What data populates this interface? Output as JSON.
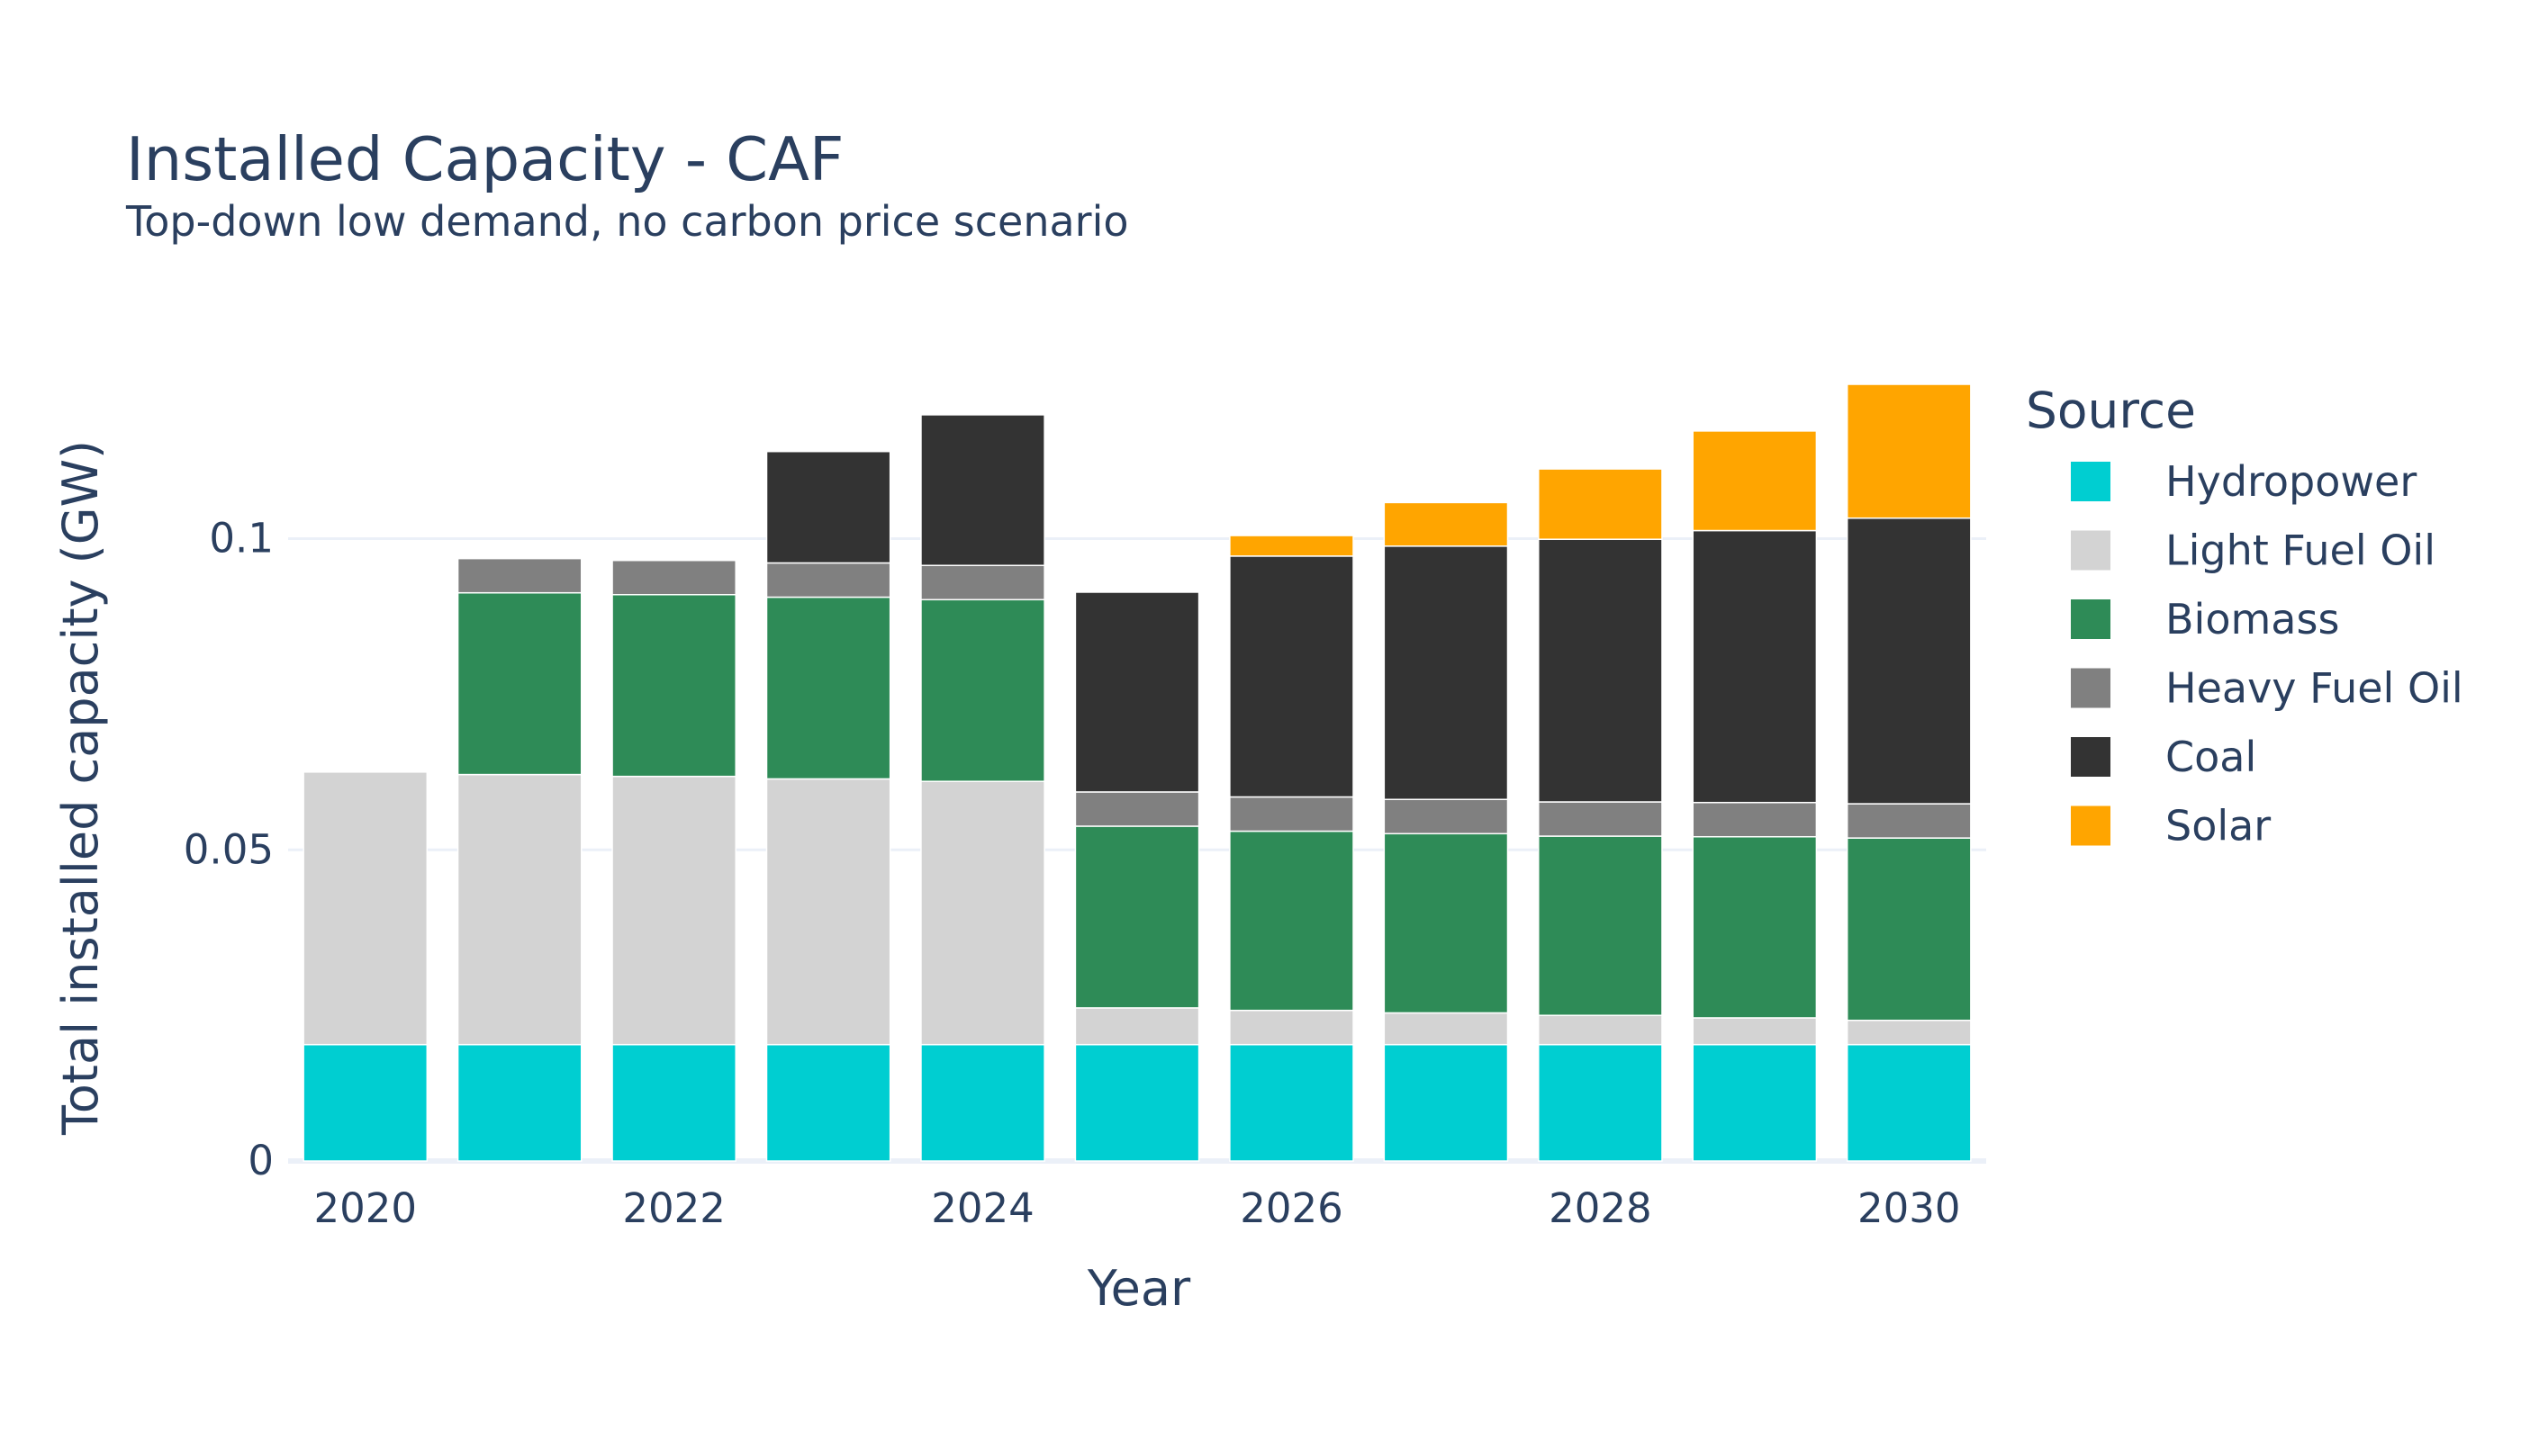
{
  "chart_data": {
    "type": "bar",
    "stacked": true,
    "title": "Installed Capacity - CAF",
    "subtitle": "Top-down low demand, no carbon price scenario",
    "xlabel": "Year",
    "ylabel": "Total installed capacity (GW)",
    "x": [
      2020,
      2021,
      2022,
      2023,
      2024,
      2025,
      2026,
      2027,
      2028,
      2029,
      2030
    ],
    "x_ticks": [
      2020,
      2022,
      2024,
      2026,
      2028,
      2030
    ],
    "x_tick_labels": [
      "2020",
      "2022",
      "2024",
      "2026",
      "2028",
      "2030"
    ],
    "y_ticks": [
      0,
      0.05,
      0.1
    ],
    "y_tick_labels": [
      "0",
      "0.05",
      "0.1"
    ],
    "ylim": [
      0,
      0.1316
    ],
    "grid": true,
    "legend_title": "Source",
    "legend_position": "right",
    "series": [
      {
        "name": "Hydropower",
        "color": "#00ced1",
        "values": [
          0.0187,
          0.0187,
          0.0187,
          0.0187,
          0.0187,
          0.0187,
          0.0187,
          0.0187,
          0.0187,
          0.0187,
          0.0187
        ]
      },
      {
        "name": "Light Fuel Oil",
        "color": "#d3d3d3",
        "values": [
          0.0438,
          0.0434,
          0.0431,
          0.0427,
          0.0423,
          0.0059,
          0.0055,
          0.0051,
          0.0047,
          0.0043,
          0.0039
        ]
      },
      {
        "name": "Biomass",
        "color": "#2e8b57",
        "values": [
          0,
          0.0292,
          0.0292,
          0.0292,
          0.0292,
          0.0292,
          0.0288,
          0.0288,
          0.0288,
          0.0291,
          0.0293
        ]
      },
      {
        "name": "Heavy Fuel Oil",
        "color": "#808080",
        "values": [
          0,
          0.0055,
          0.0055,
          0.0055,
          0.0055,
          0.0055,
          0.0055,
          0.0055,
          0.0055,
          0.0055,
          0.0055
        ]
      },
      {
        "name": "Coal",
        "color": "#333333",
        "values": [
          0,
          0,
          0,
          0.0179,
          0.0242,
          0.0321,
          0.0387,
          0.0407,
          0.0422,
          0.0437,
          0.0459
        ]
      },
      {
        "name": "Solar",
        "color": "#ffa500",
        "values": [
          0,
          0,
          0,
          0,
          0,
          0,
          0.0033,
          0.007,
          0.0113,
          0.016,
          0.0215
        ]
      }
    ]
  }
}
